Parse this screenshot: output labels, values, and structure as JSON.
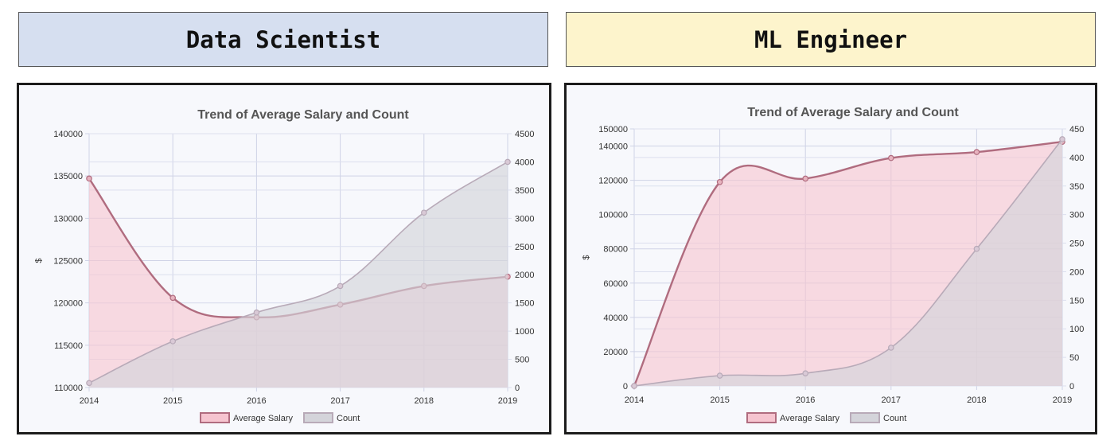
{
  "banners": {
    "left": "Data Scientist",
    "right": "ML Engineer"
  },
  "colors": {
    "salary_line": "#b06c7f",
    "salary_fill": "#f6c4cf",
    "count_line": "#b8aab8",
    "count_fill": "#d4d4da",
    "grid": "#cfd3e6",
    "axis_text": "#333333",
    "title_text": "#555555"
  },
  "chart_data": [
    {
      "type": "area",
      "title": "Trend of Average Salary and Count",
      "ylabel": "$",
      "x": [
        "2014",
        "2015",
        "2016",
        "2017",
        "2018",
        "2019"
      ],
      "y_left_ticks": [
        "110000",
        "115000",
        "120000",
        "125000",
        "130000",
        "135000",
        "140000"
      ],
      "y_left_lim": [
        110000,
        140000
      ],
      "y_right_ticks": [
        "0",
        "500",
        "1000",
        "1500",
        "2000",
        "2500",
        "3000",
        "3500",
        "4000",
        "4500"
      ],
      "y_right_lim": [
        0,
        4500
      ],
      "grid": true,
      "legend_position": "bottom",
      "series": [
        {
          "name": "Average Salary",
          "axis": "left",
          "values": [
            134700,
            120600,
            118300,
            119800,
            122000,
            123100
          ]
        },
        {
          "name": "Count",
          "axis": "right",
          "values": [
            80,
            820,
            1330,
            1800,
            3100,
            4000
          ]
        }
      ]
    },
    {
      "type": "area",
      "title": "Trend of Average Salary and Count",
      "ylabel": "$",
      "x": [
        "2014",
        "2015",
        "2016",
        "2017",
        "2018",
        "2019"
      ],
      "y_left_ticks": [
        "0",
        "20000",
        "40000",
        "60000",
        "80000",
        "100000",
        "120000",
        "140000",
        "150000"
      ],
      "y_left_lim": [
        0,
        150000
      ],
      "y_right_ticks": [
        "0",
        "50",
        "100",
        "150",
        "200",
        "250",
        "300",
        "350",
        "400",
        "450"
      ],
      "y_right_lim": [
        0,
        450
      ],
      "grid": true,
      "legend_position": "bottom",
      "series": [
        {
          "name": "Average Salary",
          "axis": "left",
          "values": [
            0,
            119000,
            121000,
            133000,
            136500,
            142500
          ]
        },
        {
          "name": "Count",
          "axis": "right",
          "values": [
            0,
            18,
            22,
            67,
            240,
            432
          ]
        }
      ]
    }
  ]
}
